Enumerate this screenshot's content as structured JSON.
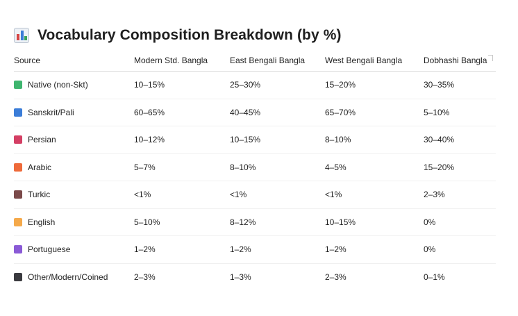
{
  "title": "Vocabulary Composition Breakdown (by %)",
  "title_icon": "bar-chart-icon",
  "table": {
    "headers": {
      "source": "Source",
      "modern": "Modern Std. Bangla",
      "east": "East Bengali Bangla",
      "west": "West Bengali Bangla",
      "dobhashi": "Dobhashi Bangla"
    },
    "rows": [
      {
        "source": "Native (non-Skt)",
        "icon": "green-square-icon",
        "color": "#3fb56f",
        "modern": "10–15%",
        "east": "25–30%",
        "west": "15–20%",
        "dobhashi": "30–35%"
      },
      {
        "source": "Sanskrit/Pali",
        "icon": "blue-square-icon",
        "color": "#3b7dd8",
        "modern": "60–65%",
        "east": "40–45%",
        "west": "65–70%",
        "dobhashi": "5–10%"
      },
      {
        "source": "Persian",
        "icon": "red-square-icon",
        "color": "#d43f64",
        "modern": "10–12%",
        "east": "10–15%",
        "west": "8–10%",
        "dobhashi": "30–40%"
      },
      {
        "source": "Arabic",
        "icon": "orange-square-icon",
        "color": "#ee6a3a",
        "modern": "5–7%",
        "east": "8–10%",
        "west": "4–5%",
        "dobhashi": "15–20%"
      },
      {
        "source": "Turkic",
        "icon": "brown-square-icon",
        "color": "#7b4a4a",
        "modern": "<1%",
        "east": "<1%",
        "west": "<1%",
        "dobhashi": "2–3%"
      },
      {
        "source": "English",
        "icon": "yellow-square-icon",
        "color": "#f5a94a",
        "modern": "5–10%",
        "east": "8–12%",
        "west": "10–15%",
        "dobhashi": "0%"
      },
      {
        "source": "Portuguese",
        "icon": "purple-square-icon",
        "color": "#8a5ad6",
        "modern": "1–2%",
        "east": "1–2%",
        "west": "1–2%",
        "dobhashi": "0%"
      },
      {
        "source": "Other/Modern/Coined",
        "icon": "black-square-icon",
        "color": "#3a3a3f",
        "modern": "2–3%",
        "east": "1–3%",
        "west": "2–3%",
        "dobhashi": "0–1%"
      }
    ]
  }
}
